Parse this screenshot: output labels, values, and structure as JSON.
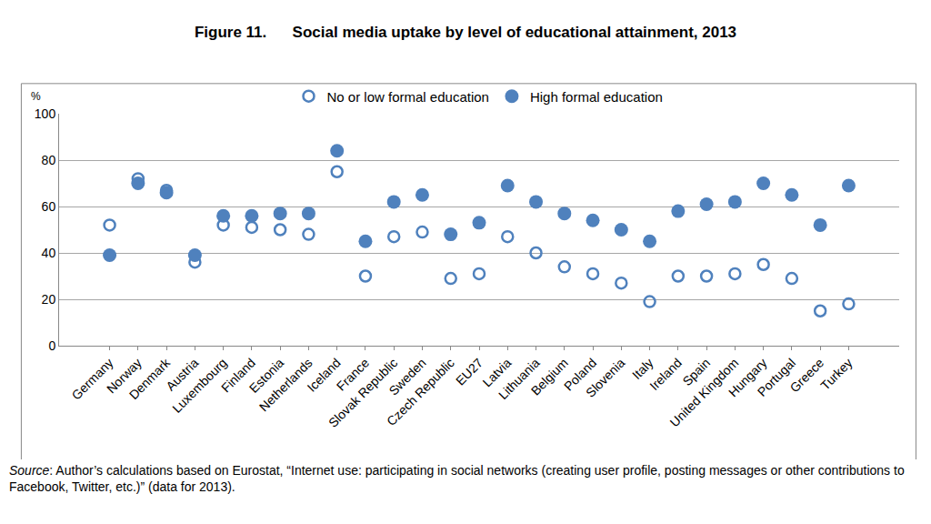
{
  "chart_data": {
    "type": "scatter",
    "title": "Figure 11.      Social media uptake by level of educational attainment, 2013",
    "y_label": "%",
    "source": "Source: Author’s calculations based on Eurostat, “Internet use: participating in social networks (creating user profile, posting messages or other contributions to Facebook, Twitter, etc.)” (data for 2013).",
    "categories": [
      "Germany",
      "Norway",
      "Denmark",
      "Austria",
      "Luxembourg",
      "Finland",
      "Estonia",
      "Netherlands",
      "Iceland",
      "France",
      "Slovak Republic",
      "Sweden",
      "Czech Republic",
      "EU27",
      "Latvia",
      "Lithuania",
      "Belgium",
      "Poland",
      "Slovenia",
      "Italy",
      "Ireland",
      "Spain",
      "United Kingdom",
      "Hungary",
      "Portugal",
      "Greece",
      "Turkey"
    ],
    "series": [
      {
        "name": "No or low formal education",
        "color": "#4f81bd",
        "marker": "circle-open",
        "values": [
          52,
          72,
          67,
          36,
          52,
          51,
          50,
          48,
          75,
          30,
          47,
          49,
          29,
          31,
          47,
          40,
          34,
          31,
          27,
          19,
          30,
          30,
          31,
          35,
          29,
          15,
          18
        ]
      },
      {
        "name": "High formal education",
        "color": "#4f81bd",
        "marker": "circle",
        "values": [
          39,
          70,
          66,
          39,
          56,
          56,
          57,
          57,
          84,
          45,
          62,
          65,
          48,
          53,
          69,
          62,
          57,
          54,
          50,
          45,
          58,
          61,
          62,
          70,
          65,
          52,
          69
        ]
      }
    ],
    "ylim": [
      0,
      100
    ],
    "yticks": [
      0,
      20,
      40,
      60,
      80,
      100
    ],
    "grid": true,
    "legend": "top"
  }
}
